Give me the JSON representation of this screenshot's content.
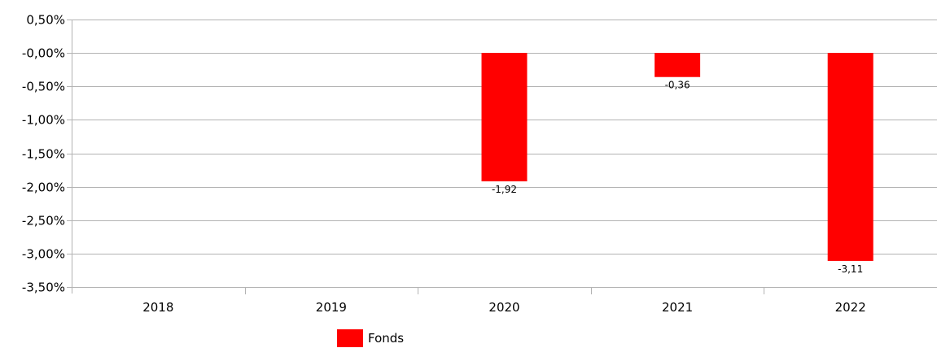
{
  "chart_data": {
    "type": "bar",
    "categories": [
      "2018",
      "2019",
      "2020",
      "2021",
      "2022"
    ],
    "series": [
      {
        "name": "Fonds",
        "values": [
          null,
          null,
          -1.92,
          -0.36,
          -3.11
        ],
        "labels": [
          null,
          null,
          "-1,92",
          "-0,36",
          "-3,11"
        ],
        "color": "#ff0000"
      }
    ],
    "yticks": [
      0.5,
      0,
      -0.5,
      -1.0,
      -1.5,
      -2.0,
      -2.5,
      -3.0,
      -3.5
    ],
    "ytick_labels": [
      "0,50%",
      "-0,00%",
      "-0,50%",
      "-1,00%",
      "-1,50%",
      "-2,00%",
      "-2,50%",
      "-3,00%",
      "-3,50%"
    ],
    "ylim": [
      -3.5,
      0.5
    ],
    "grid": true,
    "legend_position": "bottom",
    "colors": {
      "bar": "#ff0000",
      "grid": "#b3b3b3",
      "axis": "#b3b3b3",
      "text": "#000000"
    }
  }
}
